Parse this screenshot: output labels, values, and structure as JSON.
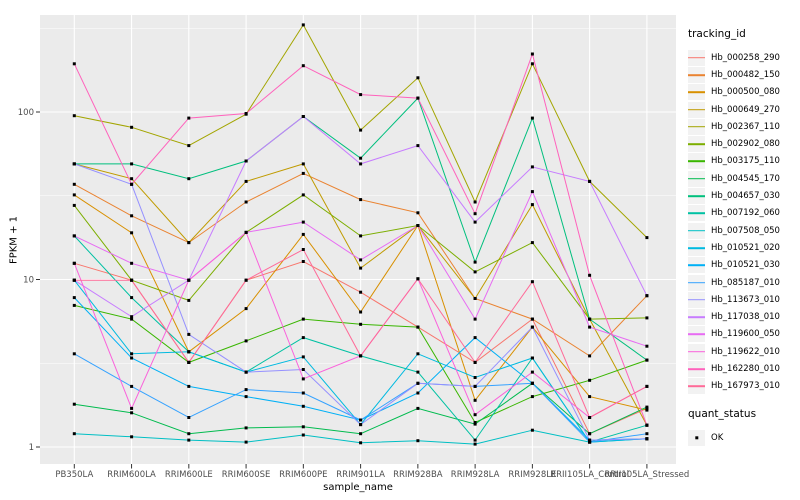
{
  "legend": {
    "tracking_title": "tracking_id",
    "quant_title": "quant_status",
    "quant_items": [
      {
        "label": "OK",
        "marker": "black-square"
      }
    ]
  },
  "chart_data": {
    "type": "line",
    "title": "",
    "xlabel": "sample_name",
    "ylabel": "FPKM + 1",
    "y_scale": "log10",
    "ylim": [
      0.79,
      380
    ],
    "y_ticks": [
      1,
      10,
      100
    ],
    "grid": true,
    "legend_position": "right",
    "panel_background": "#EBEBEB",
    "gridline_color": "#FFFFFF",
    "tick_color": "#333333",
    "tick_label_color": "#4D4D4D",
    "point_marker": {
      "shape": "square",
      "color": "#000000",
      "size": 3
    },
    "categories": [
      "PB350LA",
      "RRIM600LA",
      "RRIM600LE",
      "RRIM600SE",
      "RRIM600PE",
      "RRIM901LA",
      "RRIM928BA",
      "RRIM928LA",
      "RRIM928LE",
      "RRII105LA_Control",
      "RRII105LA_Stressed"
    ],
    "series": [
      {
        "name": "Hb_000258_290",
        "color": "#F8766D",
        "values": [
          12.5,
          9.9,
          3.2,
          9.9,
          12.8,
          8.4,
          5.2,
          3.2,
          5.8,
          1.2,
          1.7
        ]
      },
      {
        "name": "Hb_000482_150",
        "color": "#EA8331",
        "values": [
          37,
          24,
          16.6,
          29,
          43,
          30,
          25,
          7.7,
          5.8,
          3.5,
          8.0
        ]
      },
      {
        "name": "Hb_000500_080",
        "color": "#D89000",
        "values": [
          32,
          19,
          3.7,
          6.7,
          18.6,
          6.4,
          21,
          1.9,
          5.2,
          2.0,
          1.66
        ]
      },
      {
        "name": "Hb_000649_270",
        "color": "#C09B00",
        "values": [
          49,
          40,
          16.6,
          38.5,
          49,
          11.7,
          21,
          7.7,
          28,
          5.8,
          1.35
        ]
      },
      {
        "name": "Hb_002367_110",
        "color": "#A3A500",
        "values": [
          95,
          81,
          63,
          97,
          331,
          78,
          160,
          29,
          194,
          38.5,
          17.8
        ]
      },
      {
        "name": "Hb_002902_080",
        "color": "#7CAE00",
        "values": [
          27.7,
          9.9,
          7.5,
          19.1,
          32,
          18.2,
          21,
          11.1,
          16.6,
          5.8,
          5.9
        ]
      },
      {
        "name": "Hb_003175_110",
        "color": "#39B600",
        "values": [
          7.0,
          5.8,
          3.2,
          4.3,
          5.8,
          5.4,
          5.2,
          1.4,
          2.0,
          2.5,
          3.3
        ]
      },
      {
        "name": "Hb_004545_170",
        "color": "#00BB4E",
        "values": [
          1.8,
          1.6,
          1.2,
          1.3,
          1.32,
          1.2,
          1.7,
          1.37,
          2.4,
          1.2,
          1.73
        ]
      },
      {
        "name": "Hb_004657_030",
        "color": "#00BF7D",
        "values": [
          49,
          49,
          40,
          51,
          94,
          53,
          121,
          12.7,
          92,
          5.8,
          3.3
        ]
      },
      {
        "name": "Hb_007192_060",
        "color": "#00C1A3",
        "values": [
          18.2,
          7.8,
          3.7,
          2.8,
          4.5,
          3.5,
          2.8,
          1.1,
          3.4,
          1.07,
          1.35
        ]
      },
      {
        "name": "Hb_007508_050",
        "color": "#00BFC4",
        "values": [
          1.2,
          1.15,
          1.1,
          1.07,
          1.18,
          1.06,
          1.09,
          1.04,
          1.26,
          1.07,
          1.12
        ]
      },
      {
        "name": "Hb_010521_020",
        "color": "#00BAE0",
        "values": [
          9.9,
          3.6,
          3.7,
          2.8,
          3.45,
          1.36,
          3.6,
          2.6,
          3.4,
          1.07,
          1.12
        ]
      },
      {
        "name": "Hb_010521_030",
        "color": "#00B0F6",
        "values": [
          7.8,
          3.4,
          2.3,
          2.0,
          1.75,
          1.45,
          2.1,
          4.5,
          2.4,
          1.1,
          1.12
        ]
      },
      {
        "name": "Hb_085187_010",
        "color": "#35A2FF",
        "values": [
          3.6,
          2.3,
          1.5,
          2.2,
          2.1,
          1.45,
          2.4,
          2.3,
          2.4,
          1.07,
          1.2
        ]
      },
      {
        "name": "Hb_113673_010",
        "color": "#9590FF",
        "values": [
          49,
          37,
          4.7,
          2.8,
          2.9,
          1.36,
          2.4,
          2.3,
          5.2,
          1.1,
          1.12
        ]
      },
      {
        "name": "Hb_117038_010",
        "color": "#C77CFF",
        "values": [
          9.9,
          6.0,
          9.9,
          51,
          94,
          49,
          63,
          22,
          47,
          38.5,
          8.0
        ]
      },
      {
        "name": "Hb_119600_050",
        "color": "#E76BF3",
        "values": [
          18.2,
          12.5,
          9.9,
          19.1,
          22,
          13.1,
          21,
          5.8,
          33.5,
          5.2,
          4.0
        ]
      },
      {
        "name": "Hb_119622_010",
        "color": "#FA62DB",
        "values": [
          12.5,
          1.7,
          9.9,
          19.1,
          2.55,
          3.5,
          10.1,
          1.56,
          2.8,
          1.5,
          2.3
        ]
      },
      {
        "name": "Hb_162280_010",
        "color": "#FF62BC",
        "values": [
          194,
          37,
          92,
          98,
          189,
          127,
          121,
          24.7,
          222,
          10.6,
          1.35
        ]
      },
      {
        "name": "Hb_167973_010",
        "color": "#FF6A98",
        "values": [
          9.9,
          9.9,
          3.2,
          9.9,
          15.1,
          3.5,
          10.1,
          3.2,
          9.7,
          1.5,
          2.3
        ]
      }
    ]
  }
}
